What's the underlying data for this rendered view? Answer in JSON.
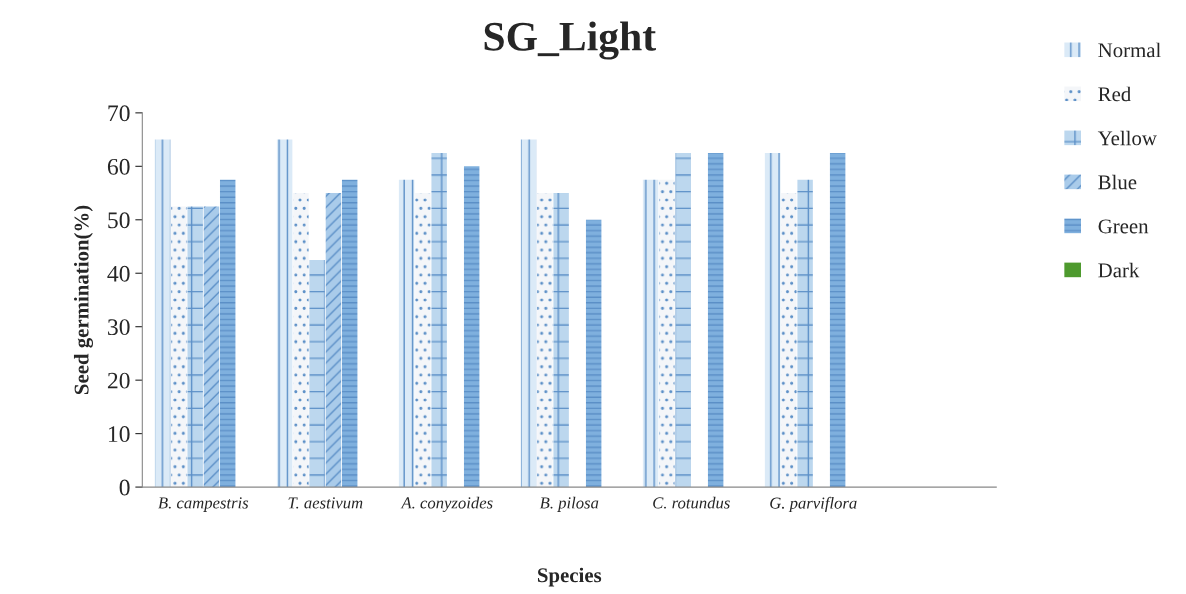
{
  "chart_data": {
    "type": "bar",
    "title": "SG_Light",
    "xlabel": "Species",
    "ylabel": "Seed germination(%)",
    "categories": [
      "B. campestris",
      "T. aestivum",
      "A. conyzoides",
      "B. pilosa",
      "C. rotundus",
      "G. parviflora"
    ],
    "series": [
      {
        "name": "Normal",
        "color": "#dbeaf7",
        "values": [
          65,
          65,
          57.5,
          65,
          57.5,
          62.5
        ]
      },
      {
        "name": "Red",
        "color": "#f4f6f9",
        "values": [
          52.5,
          55,
          55,
          55,
          57.5,
          55
        ]
      },
      {
        "name": "Yellow",
        "color": "#bcd7ee",
        "values": [
          52.5,
          42.5,
          62.5,
          55,
          62.5,
          57.5
        ]
      },
      {
        "name": "Blue",
        "color": "#a9cbea",
        "values": [
          52.5,
          55,
          0,
          0,
          0,
          0
        ]
      },
      {
        "name": "Green",
        "color": "#7fb0de",
        "values": [
          57.5,
          57.5,
          60,
          50,
          62.5,
          62.5
        ]
      },
      {
        "name": "Dark",
        "color": "#4e9a2e",
        "values": [
          0,
          0,
          0,
          0,
          0,
          0
        ]
      }
    ],
    "ylim": [
      0,
      70
    ],
    "yticks": [
      0,
      10,
      20,
      30,
      40,
      50,
      60,
      70
    ],
    "grid": false,
    "legend": "top right"
  }
}
